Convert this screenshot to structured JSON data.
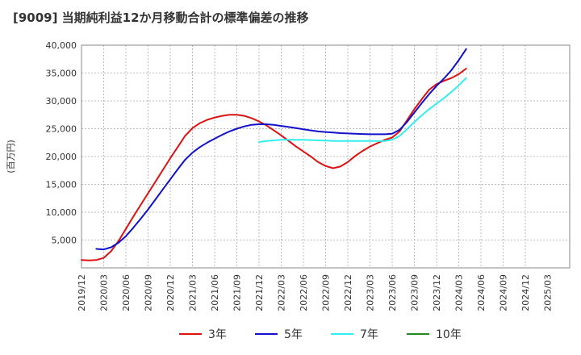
{
  "chart_data": {
    "type": "line",
    "title": "[9009]  当期純利益12か月移動合計の標準偏差の推移",
    "ylabel": "(百万円)",
    "xlabel": "",
    "ylim": [
      0,
      40000
    ],
    "yticks": [
      5000,
      10000,
      15000,
      20000,
      25000,
      30000,
      35000,
      40000
    ],
    "ytick_labels": [
      "5,000",
      "10,000",
      "15,000",
      "20,000",
      "25,000",
      "30,000",
      "35,000",
      "40,000"
    ],
    "xlim": [
      0,
      66
    ],
    "xtick_labels": [
      "2019/12",
      "2020/03",
      "2020/06",
      "2020/09",
      "2020/12",
      "2021/03",
      "2021/06",
      "2021/09",
      "2021/12",
      "2022/03",
      "2022/06",
      "2022/09",
      "2022/12",
      "2023/03",
      "2023/06",
      "2023/09",
      "2023/12",
      "2024/03",
      "2024/06",
      "2024/09",
      "2024/12",
      "2025/03"
    ],
    "grid": true,
    "legend_position": "bottom",
    "series": [
      {
        "name": "3年",
        "color": "#dd1111",
        "points": [
          [
            0,
            1400
          ],
          [
            1,
            1350
          ],
          [
            2,
            1400
          ],
          [
            3,
            1800
          ],
          [
            4,
            3000
          ],
          [
            5,
            4800
          ],
          [
            6,
            7000
          ],
          [
            7,
            9200
          ],
          [
            8,
            11300
          ],
          [
            9,
            13400
          ],
          [
            10,
            15500
          ],
          [
            11,
            17600
          ],
          [
            12,
            19700
          ],
          [
            13,
            21700
          ],
          [
            14,
            23700
          ],
          [
            15,
            25100
          ],
          [
            16,
            26000
          ],
          [
            17,
            26600
          ],
          [
            18,
            27000
          ],
          [
            19,
            27300
          ],
          [
            20,
            27500
          ],
          [
            21,
            27500
          ],
          [
            22,
            27300
          ],
          [
            23,
            26900
          ],
          [
            24,
            26300
          ],
          [
            25,
            25600
          ],
          [
            26,
            24700
          ],
          [
            27,
            23800
          ],
          [
            28,
            22800
          ],
          [
            29,
            21800
          ],
          [
            30,
            20900
          ],
          [
            31,
            20000
          ],
          [
            32,
            19000
          ],
          [
            33,
            18300
          ],
          [
            34,
            17900
          ],
          [
            35,
            18200
          ],
          [
            36,
            19000
          ],
          [
            37,
            20100
          ],
          [
            38,
            21000
          ],
          [
            39,
            21800
          ],
          [
            40,
            22400
          ],
          [
            41,
            23000
          ],
          [
            42,
            23400
          ],
          [
            43,
            24500
          ],
          [
            44,
            26500
          ],
          [
            45,
            28500
          ],
          [
            46,
            30300
          ],
          [
            47,
            32000
          ],
          [
            48,
            33000
          ],
          [
            49,
            33600
          ],
          [
            50,
            34100
          ],
          [
            51,
            34800
          ],
          [
            52,
            35800
          ]
        ]
      },
      {
        "name": "5年",
        "color": "#1111cc",
        "points": [
          [
            2,
            3400
          ],
          [
            3,
            3300
          ],
          [
            4,
            3700
          ],
          [
            5,
            4500
          ],
          [
            6,
            5700
          ],
          [
            7,
            7200
          ],
          [
            8,
            8800
          ],
          [
            9,
            10500
          ],
          [
            10,
            12300
          ],
          [
            11,
            14100
          ],
          [
            12,
            15900
          ],
          [
            13,
            17700
          ],
          [
            14,
            19400
          ],
          [
            15,
            20700
          ],
          [
            16,
            21700
          ],
          [
            17,
            22500
          ],
          [
            18,
            23200
          ],
          [
            19,
            23900
          ],
          [
            20,
            24500
          ],
          [
            21,
            25000
          ],
          [
            22,
            25400
          ],
          [
            23,
            25700
          ],
          [
            24,
            25800
          ],
          [
            25,
            25800
          ],
          [
            26,
            25700
          ],
          [
            27,
            25500
          ],
          [
            28,
            25300
          ],
          [
            29,
            25100
          ],
          [
            30,
            24900
          ],
          [
            31,
            24700
          ],
          [
            32,
            24500
          ],
          [
            33,
            24400
          ],
          [
            34,
            24300
          ],
          [
            35,
            24200
          ],
          [
            36,
            24150
          ],
          [
            37,
            24100
          ],
          [
            38,
            24050
          ],
          [
            39,
            24000
          ],
          [
            40,
            24000
          ],
          [
            41,
            24000
          ],
          [
            42,
            24100
          ],
          [
            43,
            24800
          ],
          [
            44,
            26200
          ],
          [
            45,
            27900
          ],
          [
            46,
            29600
          ],
          [
            47,
            31200
          ],
          [
            48,
            32700
          ],
          [
            49,
            34000
          ],
          [
            50,
            35500
          ],
          [
            51,
            37300
          ],
          [
            52,
            39300
          ]
        ]
      },
      {
        "name": "7年",
        "color": "#33eeee",
        "points": [
          [
            24,
            22600
          ],
          [
            25,
            22800
          ],
          [
            26,
            22900
          ],
          [
            27,
            23000
          ],
          [
            28,
            23000
          ],
          [
            29,
            23000
          ],
          [
            30,
            23000
          ],
          [
            31,
            22950
          ],
          [
            32,
            22900
          ],
          [
            33,
            22850
          ],
          [
            34,
            22800
          ],
          [
            35,
            22800
          ],
          [
            36,
            22800
          ],
          [
            37,
            22800
          ],
          [
            38,
            22800
          ],
          [
            39,
            22800
          ],
          [
            40,
            22800
          ],
          [
            41,
            22800
          ],
          [
            42,
            23000
          ],
          [
            43,
            23700
          ],
          [
            44,
            24900
          ],
          [
            45,
            26200
          ],
          [
            46,
            27400
          ],
          [
            47,
            28500
          ],
          [
            48,
            29500
          ],
          [
            49,
            30500
          ],
          [
            50,
            31600
          ],
          [
            51,
            32800
          ],
          [
            52,
            34100
          ]
        ]
      },
      {
        "name": "10年",
        "color": "#228822",
        "points": []
      }
    ]
  }
}
